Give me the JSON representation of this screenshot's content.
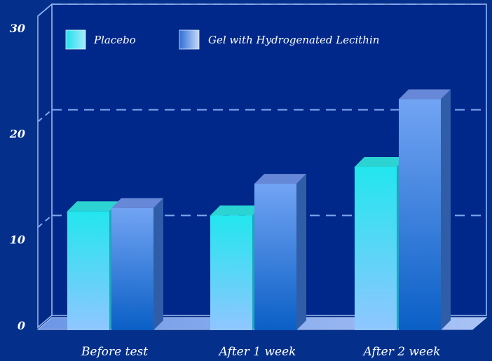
{
  "chart_data": {
    "type": "bar",
    "categories": [
      "Before test",
      "After 1 week",
      "After 2 week"
    ],
    "series": [
      {
        "name": "Placebo",
        "values": [
          11.2,
          10.8,
          15.4
        ]
      },
      {
        "name": "Gel with Hydrogenated Lecithin",
        "values": [
          11.5,
          13.8,
          21.8
        ]
      }
    ],
    "yticks": [
      0,
      10,
      20,
      30
    ],
    "ylim": [
      0,
      30
    ],
    "grid": true,
    "legend_position": "top-left",
    "colors": {
      "background": "#04308c",
      "plot_background": "#00288a",
      "gridline": "#7fa6ee",
      "placebo": "#22e4f0",
      "gel": "#5f95ee",
      "text": "#ffffff"
    }
  }
}
